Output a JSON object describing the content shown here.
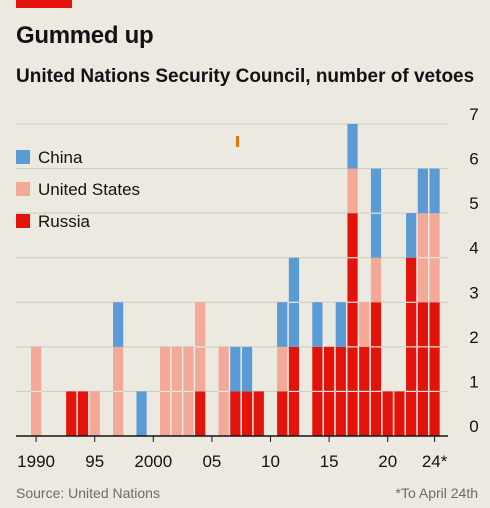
{
  "header": {
    "title": "Gummed up",
    "subtitle": "United Nations Security Council, number of vetoes"
  },
  "footer": {
    "source": "Source: United Nations",
    "footnote": "*To April 24th"
  },
  "colors": {
    "tag": "#e3120b",
    "China": "#5b9bd5",
    "United States": "#f4a897",
    "Russia": "#e3120b",
    "marker": "#e8740c"
  },
  "chart_data": {
    "type": "bar",
    "stacked": true,
    "x": [
      1990,
      1991,
      1992,
      1993,
      1994,
      1995,
      1996,
      1997,
      1998,
      1999,
      2000,
      2001,
      2002,
      2003,
      2004,
      2005,
      2006,
      2007,
      2008,
      2009,
      2010,
      2011,
      2012,
      2013,
      2014,
      2015,
      2016,
      2017,
      2018,
      2019,
      2020,
      2021,
      2022,
      2023,
      2024
    ],
    "x_tick_values": [
      1990,
      1995,
      2000,
      2005,
      2010,
      2015,
      2020,
      2024
    ],
    "x_tick_labels": [
      "1990",
      "95",
      "2000",
      "05",
      "10",
      "15",
      "20",
      "24*"
    ],
    "y_ticks": [
      0,
      1,
      2,
      3,
      4,
      5,
      6,
      7
    ],
    "ylim": [
      0,
      7
    ],
    "grid": true,
    "legend_position": "top-left",
    "series": [
      {
        "name": "Russia",
        "values": [
          0,
          0,
          0,
          1,
          1,
          0,
          0,
          0,
          0,
          0,
          0,
          0,
          0,
          0,
          1,
          0,
          0,
          1,
          1,
          1,
          0,
          1,
          2,
          0,
          2,
          2,
          2,
          5,
          2,
          3,
          1,
          1,
          4,
          3,
          3
        ]
      },
      {
        "name": "United States",
        "values": [
          2,
          0,
          0,
          0,
          0,
          1,
          0,
          2,
          0,
          0,
          0,
          2,
          2,
          2,
          2,
          0,
          2,
          0,
          0,
          0,
          0,
          1,
          0,
          0,
          0,
          0,
          0,
          1,
          1,
          1,
          0,
          0,
          0,
          2,
          2
        ]
      },
      {
        "name": "China",
        "values": [
          0,
          0,
          0,
          0,
          0,
          0,
          0,
          1,
          0,
          1,
          0,
          0,
          0,
          0,
          0,
          0,
          0,
          1,
          1,
          0,
          0,
          1,
          2,
          0,
          1,
          0,
          1,
          1,
          0,
          2,
          0,
          0,
          1,
          1,
          1
        ]
      }
    ],
    "legend_order": [
      "China",
      "United States",
      "Russia"
    ]
  }
}
